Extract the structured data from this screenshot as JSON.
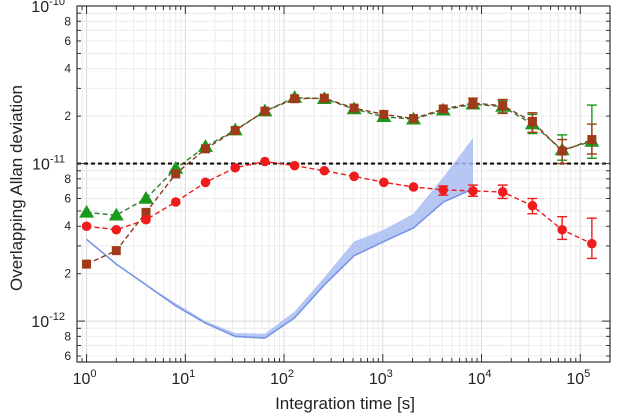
{
  "chart_data": {
    "type": "scatter",
    "title": "",
    "xlabel": "Integration time [s]",
    "ylabel": "Overlapping Allan deviation",
    "x_scale": "log",
    "y_scale": "log",
    "xlim": [
      0.8,
      200000
    ],
    "ylim": [
      5.5e-13,
      1e-10
    ],
    "grid": true,
    "legend": "none",
    "x_ticks": [
      {
        "value": 1,
        "base": "10",
        "exp": "0"
      },
      {
        "value": 10,
        "base": "10",
        "exp": "1"
      },
      {
        "value": 100,
        "base": "10",
        "exp": "2"
      },
      {
        "value": 1000,
        "base": "10",
        "exp": "3"
      },
      {
        "value": 10000,
        "base": "10",
        "exp": "4"
      },
      {
        "value": 100000,
        "base": "10",
        "exp": "5"
      }
    ],
    "y_major_ticks": [
      {
        "value": 1e-12,
        "base": "10",
        "exp": "-12"
      },
      {
        "value": 1e-11,
        "base": "10",
        "exp": "-11"
      },
      {
        "value": 1e-10,
        "base": "10",
        "exp": "-10"
      }
    ],
    "y_minor_labels": [
      {
        "value": 6e-13,
        "label": "6"
      },
      {
        "value": 8e-13,
        "label": "8"
      },
      {
        "value": 2e-12,
        "label": "2"
      },
      {
        "value": 4e-12,
        "label": "4"
      },
      {
        "value": 6e-12,
        "label": "6"
      },
      {
        "value": 8e-12,
        "label": "8"
      },
      {
        "value": 2e-11,
        "label": "2"
      },
      {
        "value": 4e-11,
        "label": "4"
      },
      {
        "value": 6e-11,
        "label": "6"
      },
      {
        "value": 8e-11,
        "label": "8"
      }
    ],
    "reference_line": {
      "y": 1e-11,
      "color": "#111111",
      "style": "dashed"
    },
    "series": [
      {
        "marker": "triangle",
        "color": "#1a9a1a",
        "line_color": "#2e7d2e",
        "x": [
          1,
          2,
          4,
          8,
          16,
          32,
          64,
          128,
          256,
          512,
          1024,
          2048,
          4096,
          8192,
          16384,
          32768,
          65536,
          131072
        ],
        "y": [
          4.9e-12,
          4.7e-12,
          6e-12,
          9.3e-12,
          1.28e-11,
          1.63e-11,
          2.15e-11,
          2.62e-11,
          2.58e-11,
          2.22e-11,
          1.98e-11,
          1.91e-11,
          2.18e-11,
          2.38e-11,
          2.3e-11,
          1.78e-11,
          1.22e-11,
          1.38e-11
        ],
        "err_low": [
          null,
          null,
          null,
          null,
          null,
          null,
          null,
          null,
          null,
          null,
          null,
          null,
          null,
          null,
          2.1e-11,
          1.55e-11,
          1.05e-11,
          1.08e-11
        ],
        "err_high": [
          null,
          null,
          null,
          null,
          null,
          null,
          null,
          null,
          null,
          null,
          null,
          null,
          null,
          null,
          2.5e-11,
          2.05e-11,
          1.52e-11,
          2.35e-11
        ]
      },
      {
        "marker": "square",
        "color": "#a03a1a",
        "line_color": "#8a3a1a",
        "x": [
          1,
          2,
          4,
          8,
          16,
          32,
          64,
          128,
          256,
          512,
          1024,
          2048,
          4096,
          8192,
          16384,
          32768,
          65536,
          131072
        ],
        "y": [
          2.3e-12,
          2.8e-12,
          4.9e-12,
          8.6e-12,
          1.24e-11,
          1.62e-11,
          2.15e-11,
          2.58e-11,
          2.6e-11,
          2.25e-11,
          2.05e-11,
          1.93e-11,
          2.22e-11,
          2.42e-11,
          2.33e-11,
          1.85e-11,
          1.2e-11,
          1.42e-11
        ],
        "err_low": [
          null,
          null,
          null,
          null,
          null,
          null,
          null,
          null,
          null,
          null,
          null,
          null,
          null,
          2.25e-11,
          2.08e-11,
          1.58e-11,
          1e-11,
          1.15e-11
        ],
        "err_high": [
          null,
          null,
          null,
          null,
          null,
          null,
          null,
          null,
          null,
          null,
          null,
          null,
          null,
          2.6e-11,
          2.55e-11,
          2.1e-11,
          1.42e-11,
          1.78e-11
        ]
      },
      {
        "marker": "circle",
        "color": "#ee1c1c",
        "line_color": "#ee1c1c",
        "x": [
          1,
          2,
          4,
          8,
          16,
          32,
          64,
          128,
          256,
          512,
          1024,
          2048,
          4096,
          8192,
          16384,
          32768,
          65536,
          131072
        ],
        "y": [
          4e-12,
          3.8e-12,
          4.4e-12,
          5.7e-12,
          7.6e-12,
          9.4e-12,
          1.03e-11,
          9.7e-12,
          9e-12,
          8.3e-12,
          7.6e-12,
          7.1e-12,
          6.8e-12,
          6.7e-12,
          6.6e-12,
          5.4e-12,
          3.8e-12,
          3.1e-12
        ],
        "err_low": [
          null,
          null,
          null,
          null,
          null,
          null,
          null,
          null,
          null,
          null,
          null,
          null,
          6.3e-12,
          6.2e-12,
          6e-12,
          4.8e-12,
          3.3e-12,
          2.5e-12
        ],
        "err_high": [
          null,
          null,
          null,
          null,
          null,
          null,
          null,
          null,
          null,
          null,
          null,
          null,
          7.2e-12,
          7.3e-12,
          7.3e-12,
          6e-12,
          4.6e-12,
          4.5e-12
        ]
      }
    ],
    "band": {
      "color": "#a9bdf2",
      "edge_color": "#7895e6",
      "x": [
        1,
        2,
        4,
        8,
        16,
        32,
        64,
        128,
        256,
        512,
        1024,
        2048,
        4096,
        8192
      ],
      "lower": [
        3.3e-12,
        2.3e-12,
        1.7e-12,
        1.25e-12,
        9.7e-13,
        8e-13,
        7.8e-13,
        1.05e-12,
        1.7e-12,
        2.6e-12,
        3.2e-12,
        3.9e-12,
        5.7e-12,
        6.9e-12
      ],
      "upper": [
        3.3e-12,
        2.3e-12,
        1.7e-12,
        1.3e-12,
        1e-12,
        8.4e-13,
        8.3e-13,
        1.15e-12,
        1.9e-12,
        3.2e-12,
        3.8e-12,
        4.8e-12,
        8.2e-12,
        1.45e-11
      ]
    }
  }
}
